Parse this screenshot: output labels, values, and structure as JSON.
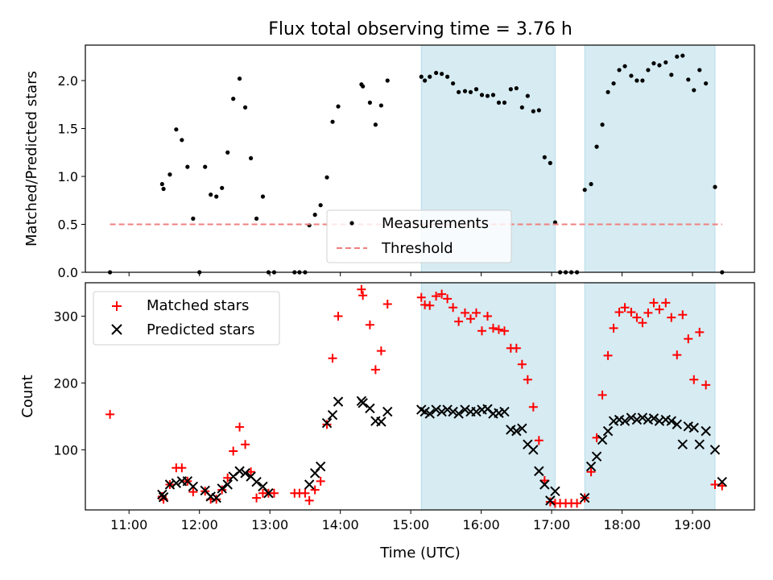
{
  "chart_data": [
    {
      "type": "scatter",
      "title": "Flux total observing time = 3.76 h",
      "xlabel": "",
      "ylabel": "Matched/Predicted stars",
      "xlim": [
        10.38,
        19.88
      ],
      "ylim": [
        0.0,
        2.37
      ],
      "yticks": [
        "0.0",
        "0.5",
        "1.0",
        "1.5",
        "2.0"
      ],
      "grid": false,
      "legend_position": "lower-center",
      "shaded_intervals": [
        [
          15.15,
          17.05
        ],
        [
          17.47,
          19.32
        ]
      ],
      "series": [
        {
          "name": "Measurements",
          "marker": "dot",
          "color": "#000000",
          "points": [
            [
              10.73,
              0.0
            ],
            [
              11.47,
              0.92
            ],
            [
              11.49,
              0.87
            ],
            [
              11.58,
              1.02
            ],
            [
              11.67,
              1.49
            ],
            [
              11.75,
              1.38
            ],
            [
              11.83,
              1.1
            ],
            [
              11.91,
              0.56
            ],
            [
              12.0,
              0.0
            ],
            [
              12.08,
              1.1
            ],
            [
              12.16,
              0.81
            ],
            [
              12.24,
              0.79
            ],
            [
              12.32,
              0.88
            ],
            [
              12.4,
              1.25
            ],
            [
              12.48,
              1.81
            ],
            [
              12.57,
              2.02
            ],
            [
              12.65,
              1.72
            ],
            [
              12.73,
              1.19
            ],
            [
              12.81,
              0.56
            ],
            [
              12.9,
              0.79
            ],
            [
              12.98,
              0.0
            ],
            [
              13.06,
              0.0
            ],
            [
              13.35,
              0.0
            ],
            [
              13.42,
              0.0
            ],
            [
              13.5,
              0.0
            ],
            [
              13.56,
              0.49
            ],
            [
              13.64,
              0.6
            ],
            [
              13.72,
              0.7
            ],
            [
              13.81,
              0.99
            ],
            [
              13.89,
              1.57
            ],
            [
              13.97,
              1.73
            ],
            [
              14.3,
              1.96
            ],
            [
              14.32,
              1.94
            ],
            [
              14.42,
              1.77
            ],
            [
              14.5,
              1.54
            ],
            [
              14.58,
              1.74
            ],
            [
              14.67,
              2.0
            ],
            [
              15.15,
              2.04
            ],
            [
              15.2,
              2.0
            ],
            [
              15.27,
              2.04
            ],
            [
              15.36,
              2.08
            ],
            [
              15.44,
              2.07
            ],
            [
              15.52,
              2.04
            ],
            [
              15.6,
              1.97
            ],
            [
              15.68,
              1.88
            ],
            [
              15.77,
              1.89
            ],
            [
              15.85,
              1.88
            ],
            [
              15.93,
              1.91
            ],
            [
              16.01,
              1.85
            ],
            [
              16.09,
              1.84
            ],
            [
              16.17,
              1.85
            ],
            [
              16.25,
              1.77
            ],
            [
              16.33,
              1.77
            ],
            [
              16.42,
              1.91
            ],
            [
              16.5,
              1.92
            ],
            [
              16.58,
              1.72
            ],
            [
              16.66,
              1.84
            ],
            [
              16.74,
              1.68
            ],
            [
              16.82,
              1.69
            ],
            [
              16.9,
              1.2
            ],
            [
              16.98,
              1.14
            ],
            [
              17.05,
              0.52
            ],
            [
              17.12,
              0.0
            ],
            [
              17.2,
              0.0
            ],
            [
              17.28,
              0.0
            ],
            [
              17.36,
              0.0
            ],
            [
              17.47,
              0.86
            ],
            [
              17.56,
              0.92
            ],
            [
              17.64,
              1.31
            ],
            [
              17.72,
              1.54
            ],
            [
              17.8,
              1.88
            ],
            [
              17.88,
              1.97
            ],
            [
              17.96,
              2.11
            ],
            [
              18.04,
              2.15
            ],
            [
              18.13,
              2.05
            ],
            [
              18.21,
              2.0
            ],
            [
              18.29,
              2.0
            ],
            [
              18.37,
              2.11
            ],
            [
              18.45,
              2.18
            ],
            [
              18.53,
              2.16
            ],
            [
              18.62,
              2.19
            ],
            [
              18.7,
              2.06
            ],
            [
              18.78,
              2.25
            ],
            [
              18.86,
              2.26
            ],
            [
              18.94,
              2.01
            ],
            [
              19.02,
              1.9
            ],
            [
              19.1,
              2.11
            ],
            [
              19.19,
              1.97
            ],
            [
              19.32,
              0.89
            ],
            [
              19.42,
              0.0
            ]
          ]
        },
        {
          "name": "Threshold",
          "line": "dashed",
          "color": "#f08080",
          "points": [
            [
              10.73,
              0.5
            ],
            [
              19.42,
              0.5
            ]
          ]
        }
      ]
    },
    {
      "type": "scatter",
      "title": "",
      "xlabel": "Time (UTC)",
      "ylabel": "Count",
      "xlim": [
        10.38,
        19.88
      ],
      "ylim": [
        10,
        350
      ],
      "xticks": [
        "11:00",
        "12:00",
        "13:00",
        "14:00",
        "15:00",
        "16:00",
        "17:00",
        "18:00",
        "19:00"
      ],
      "yticks": [
        "100",
        "200",
        "300"
      ],
      "grid": false,
      "legend_position": "upper-left",
      "shaded_intervals": [
        [
          15.15,
          17.05
        ],
        [
          17.47,
          19.32
        ]
      ],
      "series": [
        {
          "name": "Matched stars",
          "marker": "plus",
          "color": "#ff0000",
          "points": [
            [
              10.73,
              153
            ],
            [
              11.47,
              30
            ],
            [
              11.49,
              26
            ],
            [
              11.58,
              48
            ],
            [
              11.67,
              73
            ],
            [
              11.75,
              73
            ],
            [
              11.83,
              53
            ],
            [
              11.91,
              37
            ],
            [
              12.08,
              38
            ],
            [
              12.16,
              26
            ],
            [
              12.24,
              26
            ],
            [
              12.32,
              40
            ],
            [
              12.4,
              58
            ],
            [
              12.48,
              98
            ],
            [
              12.57,
              134
            ],
            [
              12.65,
              108
            ],
            [
              12.73,
              67
            ],
            [
              12.81,
              28
            ],
            [
              12.9,
              35
            ],
            [
              12.98,
              35
            ],
            [
              13.06,
              35
            ],
            [
              13.35,
              35
            ],
            [
              13.42,
              35
            ],
            [
              13.5,
              35
            ],
            [
              13.56,
              24
            ],
            [
              13.64,
              40
            ],
            [
              13.72,
              53
            ],
            [
              13.81,
              138
            ],
            [
              13.89,
              237
            ],
            [
              13.97,
              300
            ],
            [
              14.3,
              340
            ],
            [
              14.32,
              331
            ],
            [
              14.42,
              287
            ],
            [
              14.5,
              220
            ],
            [
              14.58,
              248
            ],
            [
              14.67,
              318
            ],
            [
              15.15,
              328
            ],
            [
              15.2,
              317
            ],
            [
              15.27,
              316
            ],
            [
              15.36,
              330
            ],
            [
              15.44,
              333
            ],
            [
              15.52,
              326
            ],
            [
              15.6,
              313
            ],
            [
              15.68,
              292
            ],
            [
              15.77,
              305
            ],
            [
              15.85,
              296
            ],
            [
              15.93,
              305
            ],
            [
              16.01,
              278
            ],
            [
              16.09,
              300
            ],
            [
              16.17,
              282
            ],
            [
              16.25,
              280
            ],
            [
              16.33,
              278
            ],
            [
              16.42,
              252
            ],
            [
              16.5,
              252
            ],
            [
              16.58,
              228
            ],
            [
              16.66,
              205
            ],
            [
              16.74,
              164
            ],
            [
              16.82,
              114
            ],
            [
              16.9,
              54
            ],
            [
              16.98,
              22
            ],
            [
              17.05,
              20
            ],
            [
              17.12,
              20
            ],
            [
              17.2,
              20
            ],
            [
              17.28,
              20
            ],
            [
              17.36,
              20
            ],
            [
              17.47,
              28
            ],
            [
              17.56,
              67
            ],
            [
              17.64,
              118
            ],
            [
              17.72,
              182
            ],
            [
              17.8,
              241
            ],
            [
              17.88,
              282
            ],
            [
              17.96,
              306
            ],
            [
              18.04,
              313
            ],
            [
              18.13,
              306
            ],
            [
              18.21,
              298
            ],
            [
              18.29,
              290
            ],
            [
              18.37,
              305
            ],
            [
              18.45,
              320
            ],
            [
              18.53,
              310
            ],
            [
              18.62,
              320
            ],
            [
              18.7,
              298
            ],
            [
              18.78,
              242
            ],
            [
              18.86,
              302
            ],
            [
              18.94,
              266
            ],
            [
              19.02,
              205
            ],
            [
              19.1,
              276
            ],
            [
              19.19,
              197
            ],
            [
              19.32,
              48
            ],
            [
              19.42,
              46
            ]
          ]
        },
        {
          "name": "Predicted stars",
          "marker": "x",
          "color": "#000000",
          "points": [
            [
              11.47,
              33
            ],
            [
              11.49,
              29
            ],
            [
              11.58,
              48
            ],
            [
              11.67,
              50
            ],
            [
              11.75,
              53
            ],
            [
              11.83,
              53
            ],
            [
              11.91,
              45
            ],
            [
              12.08,
              39
            ],
            [
              12.16,
              30
            ],
            [
              12.24,
              28
            ],
            [
              12.32,
              42
            ],
            [
              12.4,
              48
            ],
            [
              12.48,
              60
            ],
            [
              12.57,
              68
            ],
            [
              12.65,
              65
            ],
            [
              12.73,
              60
            ],
            [
              12.81,
              52
            ],
            [
              12.9,
              45
            ],
            [
              12.98,
              35
            ],
            [
              13.56,
              48
            ],
            [
              13.64,
              65
            ],
            [
              13.72,
              75
            ],
            [
              13.81,
              140
            ],
            [
              13.89,
              152
            ],
            [
              13.97,
              172
            ],
            [
              14.3,
              173
            ],
            [
              14.32,
              170
            ],
            [
              14.42,
              162
            ],
            [
              14.5,
              143
            ],
            [
              14.58,
              142
            ],
            [
              14.67,
              157
            ],
            [
              15.15,
              160
            ],
            [
              15.2,
              157
            ],
            [
              15.27,
              154
            ],
            [
              15.36,
              160
            ],
            [
              15.44,
              157
            ],
            [
              15.52,
              160
            ],
            [
              15.6,
              157
            ],
            [
              15.68,
              154
            ],
            [
              15.77,
              160
            ],
            [
              15.85,
              157
            ],
            [
              15.93,
              157
            ],
            [
              16.01,
              160
            ],
            [
              16.09,
              161
            ],
            [
              16.17,
              154
            ],
            [
              16.25,
              155
            ],
            [
              16.33,
              157
            ],
            [
              16.42,
              130
            ],
            [
              16.5,
              128
            ],
            [
              16.58,
              132
            ],
            [
              16.66,
              108
            ],
            [
              16.74,
              100
            ],
            [
              16.82,
              68
            ],
            [
              16.9,
              48
            ],
            [
              16.98,
              24
            ],
            [
              17.05,
              38
            ],
            [
              17.47,
              28
            ],
            [
              17.56,
              75
            ],
            [
              17.64,
              90
            ],
            [
              17.72,
              115
            ],
            [
              17.8,
              128
            ],
            [
              17.88,
              143
            ],
            [
              17.96,
              145
            ],
            [
              18.04,
              143
            ],
            [
              18.13,
              148
            ],
            [
              18.21,
              145
            ],
            [
              18.29,
              148
            ],
            [
              18.37,
              145
            ],
            [
              18.45,
              147
            ],
            [
              18.53,
              143
            ],
            [
              18.62,
              145
            ],
            [
              18.7,
              143
            ],
            [
              18.78,
              138
            ],
            [
              18.86,
              108
            ],
            [
              18.94,
              135
            ],
            [
              19.02,
              133
            ],
            [
              19.1,
              108
            ],
            [
              19.19,
              128
            ],
            [
              19.32,
              100
            ],
            [
              19.42,
              52
            ]
          ]
        }
      ]
    }
  ]
}
